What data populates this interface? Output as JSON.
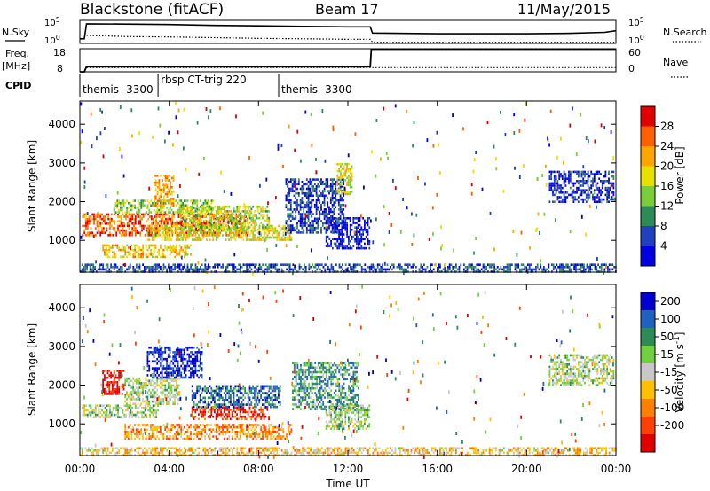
{
  "header": {
    "station": "Blackstone (fitACF)",
    "beam": "Beam 17",
    "date": "11/May/2015"
  },
  "side_labels": {
    "nsky": "N.Sky",
    "nsearch": "N.Search",
    "freq": "Freq.",
    "freq_unit": "[MHz]",
    "nave": "Nave",
    "cpid": "CPID"
  },
  "cpid_segments": [
    {
      "label": "themis -3300",
      "start": 0.0,
      "end": 3.5
    },
    {
      "label": "rbsp CT-trig 220",
      "start": 3.5,
      "end": 8.9
    },
    {
      "label": "themis -3300",
      "start": 8.9,
      "end": 24.0
    }
  ],
  "chart_data": [
    {
      "type": "line",
      "name": "noise-panel",
      "left_label": "N.Sky",
      "right_label": "N.Search",
      "left_ticks": [
        "10^5",
        "10^0"
      ],
      "right_ticks": [
        "10^5",
        "10^0"
      ],
      "series": [
        {
          "name": "N.Sky",
          "style": "solid",
          "x": [
            0.0,
            0.2,
            0.3,
            2.0,
            4.0,
            6.0,
            8.0,
            10.0,
            12.0,
            13.0,
            13.1,
            16.0,
            20.0,
            22.0,
            23.5,
            24.0
          ],
          "y": [
            0.2,
            0.2,
            0.85,
            0.84,
            0.82,
            0.78,
            0.76,
            0.74,
            0.72,
            0.72,
            0.45,
            0.42,
            0.42,
            0.44,
            0.48,
            0.55
          ]
        },
        {
          "name": "N.Search",
          "style": "dotted",
          "x": [
            0.3,
            2.0,
            4.0,
            6.0,
            8.0,
            10.0,
            12.0,
            13.0,
            13.1,
            24.0
          ],
          "y": [
            0.35,
            0.3,
            0.28,
            0.25,
            0.22,
            0.2,
            0.18,
            0.18,
            0.05,
            0.05
          ]
        }
      ]
    },
    {
      "type": "line",
      "name": "freq-nave-panel",
      "left_ticks": [
        "18",
        "8"
      ],
      "right_ticks": [
        "60",
        "0"
      ],
      "ylim_freq": [
        8,
        18
      ],
      "ylim_nave": [
        0,
        60
      ],
      "series": [
        {
          "name": "Freq.",
          "style": "solid",
          "x": [
            0.0,
            0.2,
            0.3,
            13.0,
            13.05,
            24.0
          ],
          "y": [
            8,
            8,
            10.2,
            10.2,
            17.8,
            17.8
          ]
        },
        {
          "name": "Nave",
          "style": "dotted",
          "x": [
            0.3,
            24.0
          ],
          "y": [
            11,
            11
          ]
        }
      ]
    },
    {
      "type": "heatmap",
      "name": "power-panel",
      "ylabel": "Slant Range [km]",
      "y_ticks": [
        1000,
        2000,
        3000,
        4000
      ],
      "ylim": [
        180,
        4600
      ],
      "xlim": [
        0,
        24
      ],
      "colorbar_label": "Power [dB]",
      "colorbar_ticks": [
        "4",
        "8",
        "12",
        "16",
        "20",
        "24",
        "28"
      ],
      "colorbar_colors": [
        "#0000e0",
        "#2040c0",
        "#2e8b57",
        "#7ccd3a",
        "#e8e000",
        "#ffa500",
        "#ff6000",
        "#e00000"
      ],
      "regions": [
        {
          "x0": 0.1,
          "x1": 7.5,
          "r0": 1150,
          "r1": 1700,
          "level": 0.82
        },
        {
          "x0": 1.5,
          "x1": 6.0,
          "r0": 1700,
          "r1": 2050,
          "level": 0.45
        },
        {
          "x0": 1.0,
          "x1": 5.0,
          "r0": 600,
          "r1": 900,
          "level": 0.6
        },
        {
          "x0": 3.0,
          "x1": 9.5,
          "r0": 1000,
          "r1": 1400,
          "level": 0.55
        },
        {
          "x0": 4.5,
          "x1": 8.5,
          "r0": 1300,
          "r1": 1900,
          "level": 0.5
        },
        {
          "x0": 3.3,
          "x1": 4.2,
          "r0": 1900,
          "r1": 2700,
          "level": 0.7
        },
        {
          "x0": 9.2,
          "x1": 11.8,
          "r0": 1200,
          "r1": 2600,
          "level": 0.15
        },
        {
          "x0": 11.0,
          "x1": 13.0,
          "r0": 800,
          "r1": 1600,
          "level": 0.1
        },
        {
          "x0": 11.5,
          "x1": 12.2,
          "r0": 2200,
          "r1": 3000,
          "level": 0.55
        },
        {
          "x0": 21.0,
          "x1": 23.9,
          "r0": 2000,
          "r1": 2800,
          "level": 0.12
        },
        {
          "x0": 0.0,
          "x1": 24.0,
          "r0": 200,
          "r1": 400,
          "level": 0.2
        }
      ]
    },
    {
      "type": "heatmap",
      "name": "velocity-panel",
      "ylabel": "Slant Range [km]",
      "y_ticks": [
        1000,
        2000,
        3000,
        4000
      ],
      "ylim": [
        180,
        4600
      ],
      "xlim": [
        0,
        24
      ],
      "colorbar_label": "Velocity [m s^-1]",
      "colorbar_ticks": [
        "200",
        "100",
        "50",
        "15",
        "-15",
        "-50",
        "-100",
        "-200"
      ],
      "colorbar_colors": [
        "#0000d0",
        "#2060c0",
        "#2e8b57",
        "#70d040",
        "#c8c8c8",
        "#ffc000",
        "#ff8000",
        "#ff4000",
        "#e00000"
      ],
      "regions": [
        {
          "x0": 0.1,
          "x1": 3.5,
          "r0": 1150,
          "r1": 1500,
          "level": 0.45
        },
        {
          "x0": 2.0,
          "x1": 4.5,
          "r0": 1500,
          "r1": 2200,
          "level": 0.45
        },
        {
          "x0": 1.0,
          "x1": 2.0,
          "r0": 1800,
          "r1": 2400,
          "level": 0.95
        },
        {
          "x0": 2.0,
          "x1": 9.5,
          "r0": 600,
          "r1": 1000,
          "level": 0.7
        },
        {
          "x0": 5.0,
          "x1": 8.5,
          "r0": 1100,
          "r1": 1450,
          "level": 0.9
        },
        {
          "x0": 5.0,
          "x1": 9.0,
          "r0": 1450,
          "r1": 2000,
          "level": 0.2
        },
        {
          "x0": 3.0,
          "x1": 5.5,
          "r0": 2200,
          "r1": 3000,
          "level": 0.05
        },
        {
          "x0": 9.5,
          "x1": 12.5,
          "r0": 1400,
          "r1": 2600,
          "level": 0.3
        },
        {
          "x0": 11.0,
          "x1": 13.0,
          "r0": 900,
          "r1": 1500,
          "level": 0.45
        },
        {
          "x0": 21.0,
          "x1": 23.9,
          "r0": 2000,
          "r1": 2800,
          "level": 0.45
        },
        {
          "x0": 0.0,
          "x1": 24.0,
          "r0": 200,
          "r1": 400,
          "level": 0.6
        }
      ]
    }
  ],
  "x_axis": {
    "label": "Time UT",
    "ticks": [
      "00:00",
      "04:00",
      "08:00",
      "12:00",
      "16:00",
      "20:00",
      "00:00"
    ]
  }
}
